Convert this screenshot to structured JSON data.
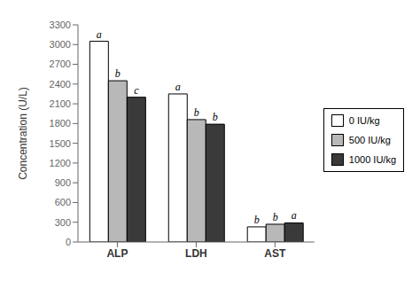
{
  "chart_data": {
    "type": "bar",
    "categories": [
      "ALP",
      "LDH",
      "AST"
    ],
    "series": [
      {
        "name": "0 IU/kg",
        "color": "#ffffff",
        "values": [
          3050,
          2250,
          230
        ],
        "annotations": [
          "a",
          "a",
          "b"
        ]
      },
      {
        "name": "500 IU/kg",
        "color": "#b8b8b8",
        "values": [
          2450,
          1860,
          270
        ],
        "annotations": [
          "b",
          "b",
          "b"
        ]
      },
      {
        "name": "1000 IU/kg",
        "color": "#3a3a3a",
        "values": [
          2200,
          1790,
          290
        ],
        "annotations": [
          "c",
          "b",
          "a"
        ]
      }
    ],
    "y_label": "Concentration (U/L)",
    "ylim": [
      0,
      3300
    ],
    "yticks": [
      0,
      300,
      600,
      900,
      1200,
      1500,
      1800,
      2100,
      2400,
      2700,
      3000,
      3300
    ],
    "grid": false,
    "legend": "right"
  }
}
